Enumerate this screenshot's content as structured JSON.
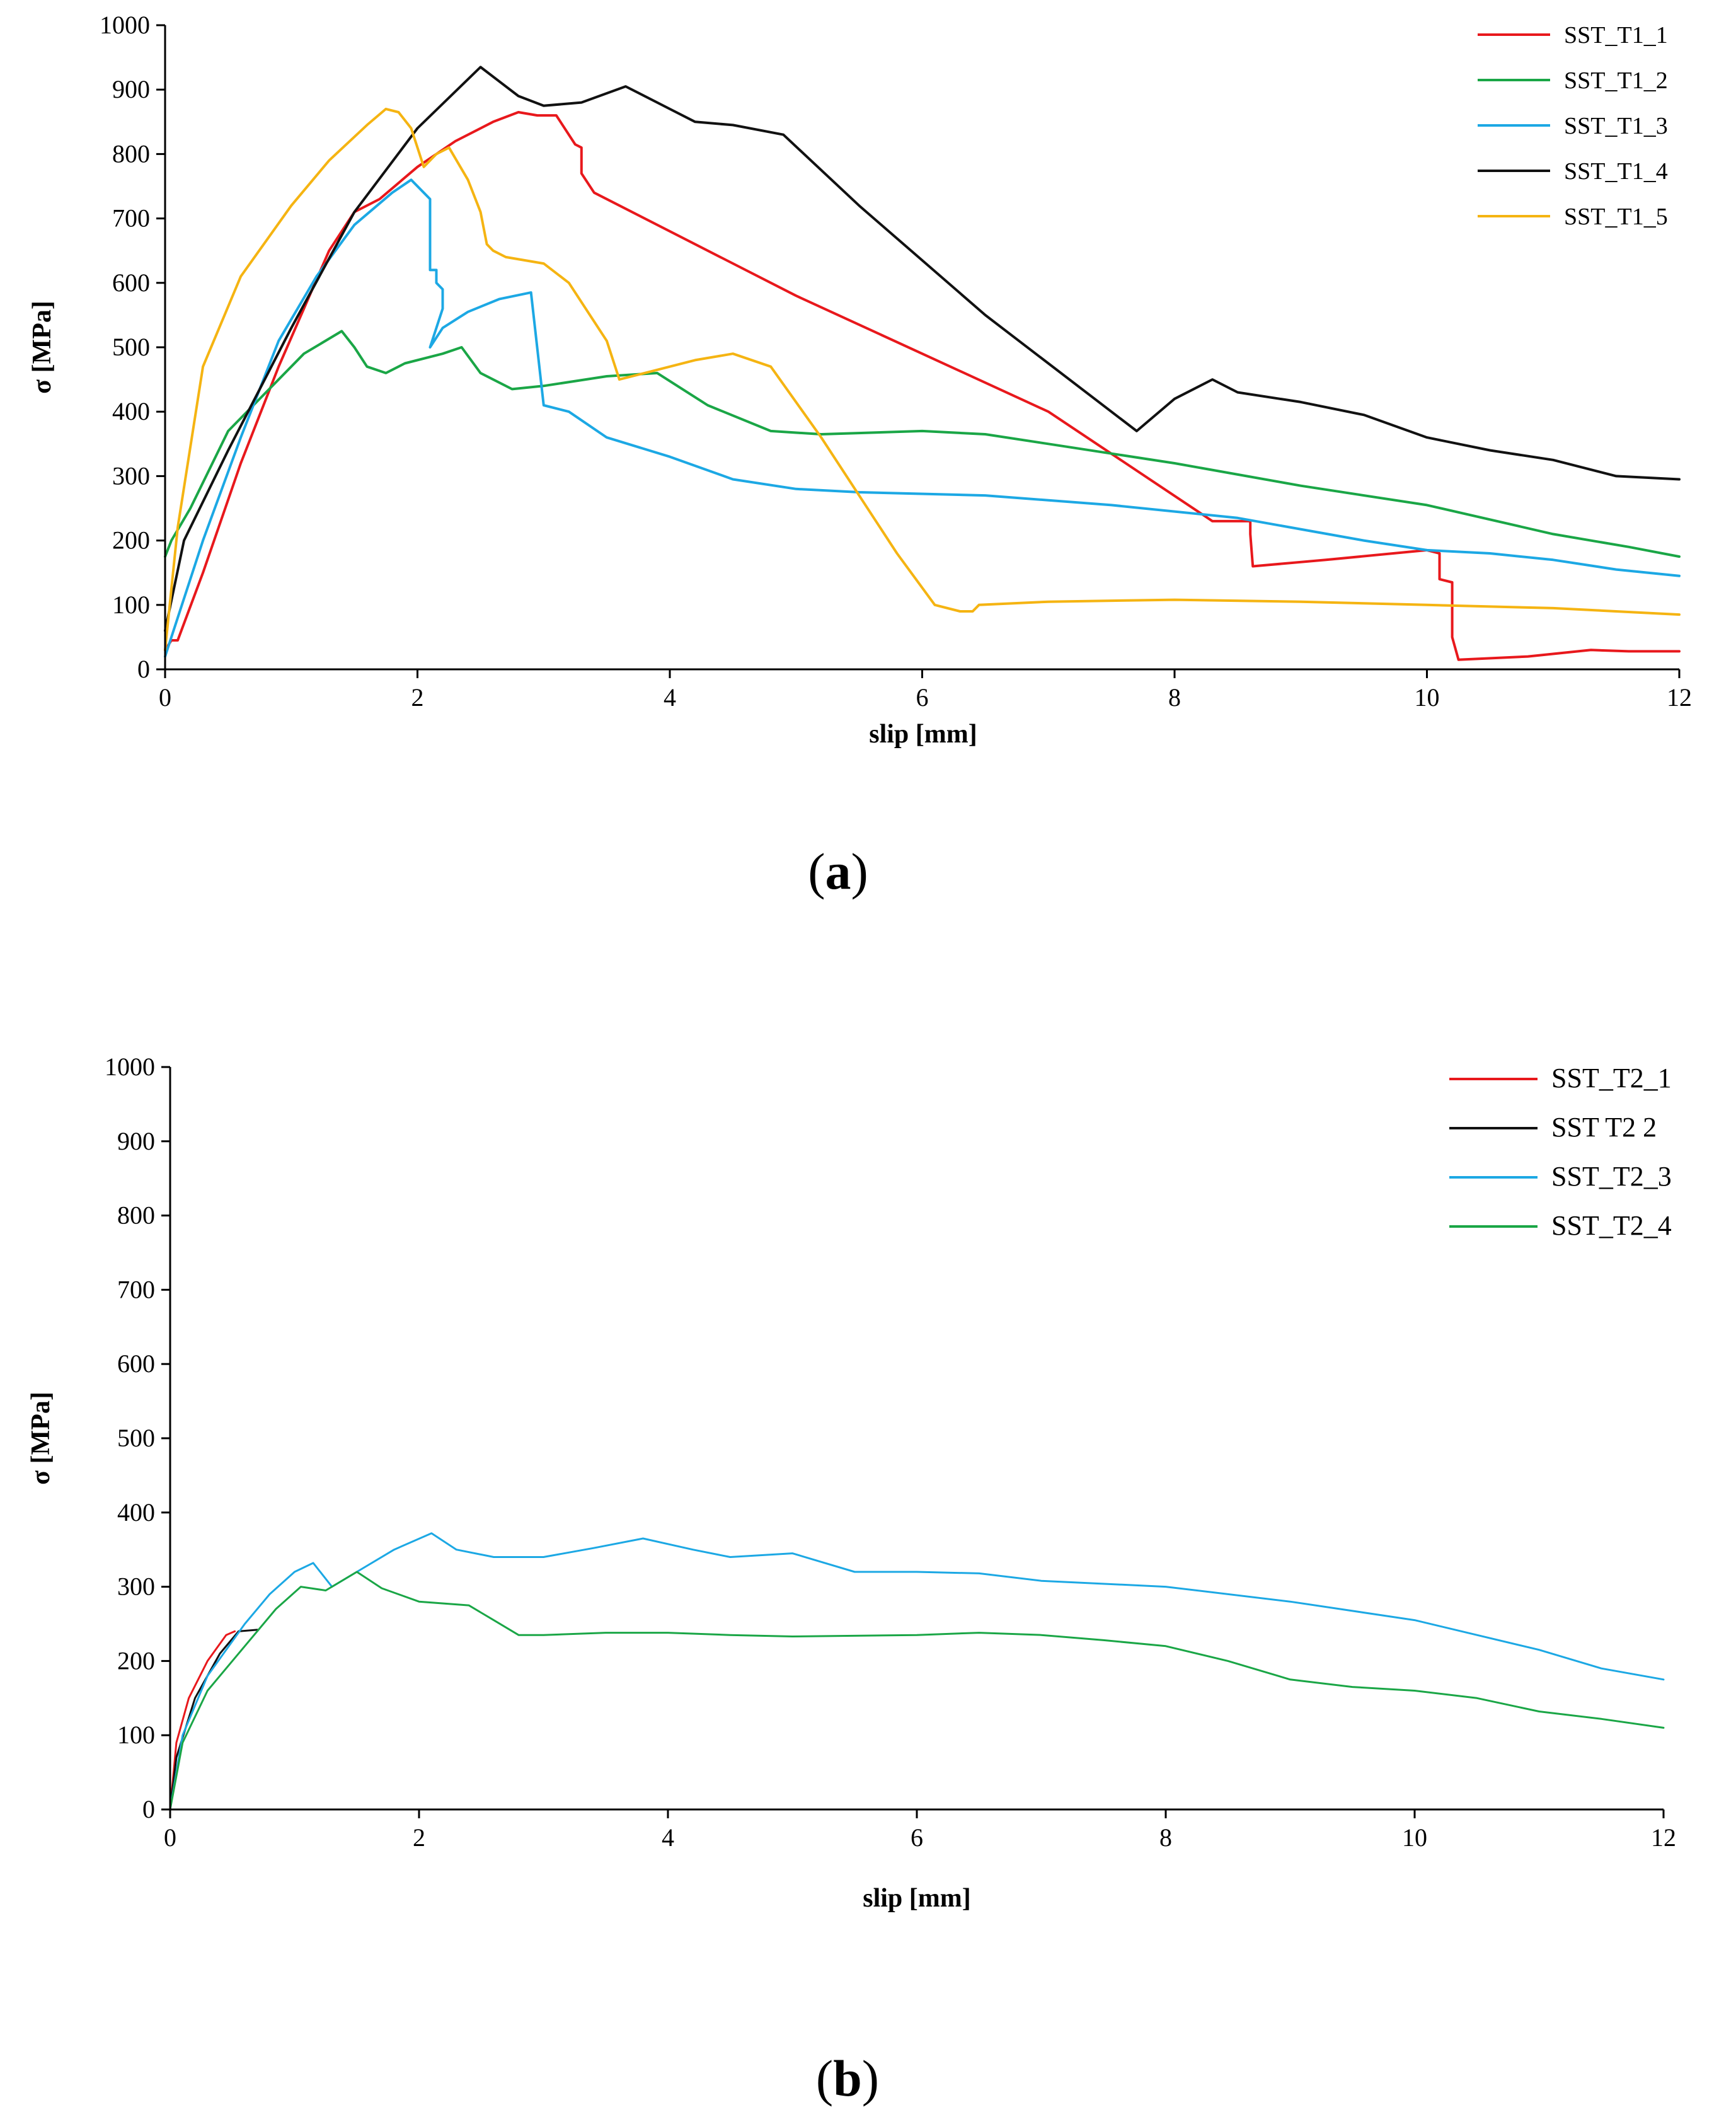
{
  "chart_data": [
    {
      "id": "a",
      "type": "line",
      "caption_open": "(",
      "caption_letter": "a",
      "caption_close": ")",
      "xlabel": "slip [mm]",
      "ylabel": "σ [MPa]",
      "xlim": [
        0,
        12
      ],
      "ylim": [
        0,
        1000
      ],
      "xticks": [
        0,
        2,
        4,
        6,
        8,
        10,
        12
      ],
      "yticks": [
        0,
        100,
        200,
        300,
        400,
        500,
        600,
        700,
        800,
        900,
        1000
      ],
      "grid": false,
      "legend_position": "top-right",
      "series": [
        {
          "name": "SST_T1_1",
          "color": "#e8181c",
          "x": [
            0,
            0.05,
            0.1,
            0.3,
            0.6,
            0.9,
            1.1,
            1.3,
            1.5,
            1.7,
            2.0,
            2.3,
            2.6,
            2.8,
            2.95,
            3.1,
            3.25,
            3.3,
            3.3,
            3.4,
            5.0,
            7.0,
            8.3,
            8.6,
            8.6,
            8.62,
            9.2,
            10.0,
            10.1,
            10.1,
            10.2,
            10.2,
            10.25,
            10.8,
            11.3,
            11.6,
            12.0
          ],
          "y": [
            30,
            45,
            45,
            150,
            320,
            470,
            560,
            650,
            710,
            730,
            780,
            820,
            850,
            865,
            860,
            860,
            815,
            810,
            770,
            740,
            580,
            400,
            230,
            230,
            210,
            160,
            170,
            185,
            180,
            140,
            135,
            50,
            15,
            20,
            30,
            28,
            28
          ]
        },
        {
          "name": "SST_T1_2",
          "color": "#1aa646",
          "x": [
            0,
            0.05,
            0.2,
            0.5,
            0.8,
            1.1,
            1.4,
            1.5,
            1.6,
            1.75,
            1.9,
            2.2,
            2.35,
            2.5,
            2.75,
            3.0,
            3.5,
            3.9,
            4.3,
            4.8,
            5.2,
            6.0,
            6.5,
            7.0,
            8.0,
            9.0,
            10.0,
            11.0,
            11.6,
            12.0
          ],
          "y": [
            175,
            200,
            250,
            370,
            430,
            490,
            525,
            500,
            470,
            460,
            475,
            490,
            500,
            460,
            435,
            440,
            455,
            460,
            410,
            370,
            365,
            370,
            365,
            350,
            320,
            285,
            255,
            210,
            190,
            175
          ]
        },
        {
          "name": "SST_T1_3",
          "color": "#1ca8e4",
          "x": [
            0,
            0.1,
            0.3,
            0.6,
            0.9,
            1.2,
            1.5,
            1.8,
            1.95,
            2.05,
            2.1,
            2.1,
            2.15,
            2.15,
            2.2,
            2.2,
            2.1,
            2.2,
            2.4,
            2.65,
            2.9,
            3.0,
            3.2,
            3.5,
            4.0,
            4.5,
            5.0,
            5.5,
            6.5,
            7.5,
            8.5,
            9.5,
            10.0,
            10.5,
            11.0,
            11.5,
            12.0
          ],
          "y": [
            20,
            80,
            200,
            360,
            510,
            610,
            690,
            740,
            760,
            740,
            730,
            620,
            620,
            600,
            590,
            560,
            500,
            530,
            555,
            575,
            585,
            410,
            400,
            360,
            330,
            295,
            280,
            275,
            270,
            255,
            235,
            200,
            185,
            180,
            170,
            155,
            145
          ]
        },
        {
          "name": "SST_T1_4",
          "color": "#111111",
          "x": [
            0,
            0.15,
            0.5,
            1.0,
            1.5,
            2.0,
            2.5,
            2.8,
            3.0,
            3.3,
            3.65,
            4.0,
            4.2,
            4.5,
            4.9,
            5.5,
            6.5,
            7.7,
            8.0,
            8.3,
            8.5,
            9.0,
            9.5,
            10.0,
            10.5,
            11.0,
            11.5,
            12.0
          ],
          "y": [
            60,
            200,
            340,
            530,
            710,
            840,
            935,
            890,
            875,
            880,
            905,
            870,
            850,
            845,
            830,
            720,
            550,
            370,
            420,
            450,
            430,
            415,
            395,
            360,
            340,
            325,
            300,
            295
          ]
        },
        {
          "name": "SST_T1_5",
          "color": "#f5b412",
          "x": [
            0,
            0.1,
            0.3,
            0.6,
            1.0,
            1.3,
            1.6,
            1.75,
            1.85,
            1.95,
            2.05,
            2.15,
            2.25,
            2.4,
            2.5,
            2.55,
            2.6,
            2.7,
            3.0,
            3.2,
            3.5,
            3.6,
            3.8,
            4.2,
            4.5,
            4.8,
            5.2,
            5.8,
            6.1,
            6.3,
            6.4,
            6.45,
            7.0,
            8.0,
            9.0,
            10.0,
            11.0,
            12.0
          ],
          "y": [
            30,
            220,
            470,
            610,
            720,
            790,
            845,
            870,
            865,
            840,
            780,
            800,
            810,
            760,
            710,
            660,
            650,
            640,
            630,
            600,
            510,
            450,
            460,
            480,
            490,
            470,
            360,
            180,
            100,
            90,
            90,
            100,
            105,
            108,
            105,
            100,
            95,
            85
          ]
        }
      ]
    },
    {
      "id": "b",
      "type": "line",
      "caption_open": "(",
      "caption_letter": "b",
      "caption_close": ")",
      "xlabel": "slip [mm]",
      "ylabel": "σ [MPa]",
      "xlim": [
        0,
        12
      ],
      "ylim": [
        0,
        1000
      ],
      "xticks": [
        0,
        2,
        4,
        6,
        8,
        10,
        12
      ],
      "yticks": [
        0,
        100,
        200,
        300,
        400,
        500,
        600,
        700,
        800,
        900,
        1000
      ],
      "grid": false,
      "legend_position": "top-right",
      "series": [
        {
          "name": "SST_T2_1",
          "color": "#e8181c",
          "x": [
            0,
            0.05,
            0.15,
            0.3,
            0.45,
            0.52
          ],
          "y": [
            0,
            90,
            150,
            200,
            235,
            240
          ]
        },
        {
          "name": "SST T2 2",
          "color": "#111111",
          "x": [
            0,
            0.05,
            0.2,
            0.4,
            0.55,
            0.7
          ],
          "y": [
            0,
            70,
            150,
            210,
            240,
            242
          ]
        },
        {
          "name": "SST_T2_3",
          "color": "#1ca8e4",
          "x": [
            0,
            0.1,
            0.3,
            0.6,
            0.8,
            1.0,
            1.15,
            1.3,
            1.5,
            1.8,
            2.1,
            2.3,
            2.6,
            3.0,
            3.4,
            3.8,
            4.2,
            4.5,
            5.0,
            5.5,
            6.0,
            6.5,
            7.0,
            8.0,
            9.0,
            10.0,
            11.0,
            11.5,
            12.0
          ],
          "y": [
            0,
            100,
            180,
            250,
            290,
            320,
            332,
            300,
            320,
            350,
            372,
            350,
            340,
            340,
            352,
            365,
            350,
            340,
            345,
            320,
            320,
            318,
            308,
            300,
            280,
            255,
            215,
            190,
            175
          ]
        },
        {
          "name": "SST_T2_4",
          "color": "#1aa646",
          "x": [
            0,
            0.1,
            0.3,
            0.6,
            0.85,
            1.05,
            1.25,
            1.5,
            1.7,
            2.0,
            2.4,
            2.6,
            2.8,
            3.0,
            3.5,
            4.0,
            4.5,
            5.0,
            6.0,
            6.5,
            7.0,
            7.5,
            8.0,
            8.5,
            9.0,
            9.5,
            10.0,
            10.5,
            11.0,
            11.5,
            12.0
          ],
          "y": [
            0,
            90,
            160,
            220,
            270,
            300,
            295,
            320,
            298,
            280,
            275,
            255,
            235,
            235,
            238,
            238,
            235,
            233,
            235,
            238,
            235,
            228,
            220,
            200,
            175,
            165,
            160,
            150,
            132,
            122,
            110
          ]
        }
      ]
    }
  ]
}
